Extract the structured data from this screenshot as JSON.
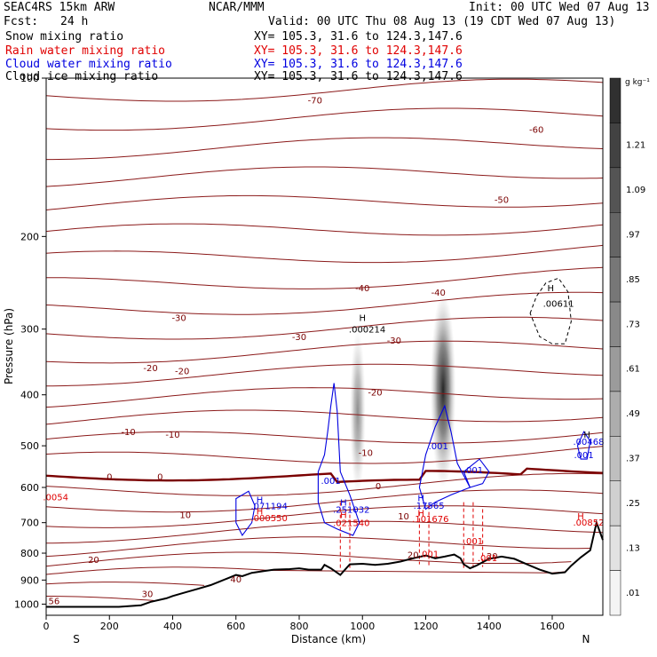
{
  "header": {
    "model": "SEAC4RS 15km ARW",
    "org": "NCAR/MMM",
    "init": "Init: 00 UTC Wed 07 Aug 13",
    "fcst_label": "Fcst:",
    "fcst_value": "24 h",
    "valid": "Valid: 00 UTC Thu 08 Aug 13 (19 CDT Wed 07 Aug 13)",
    "fields": [
      {
        "name": "Snow mixing ratio",
        "xy": "XY= 105.3, 31.6 to 124.3,147.6",
        "color": "#000000"
      },
      {
        "name": "Rain water mixing ratio",
        "xy": "XY= 105.3, 31.6 to 124.3,147.6",
        "color": "#e00000"
      },
      {
        "name": "Cloud water mixing ratio",
        "xy": "XY= 105.3, 31.6 to 124.3,147.6",
        "color": "#0000e0"
      },
      {
        "name": "Cloud ice mixing ratio",
        "xy": "XY= 105.3, 31.6 to 124.3,147.6",
        "color": "#000000"
      }
    ]
  },
  "chart_data": {
    "type": "heatmap",
    "xlabel": "Distance (km)",
    "ylabel": "Pressure (hPa)",
    "xlim": [
      0,
      1760
    ],
    "ylim": [
      1050,
      100
    ],
    "x_ticks": [
      0,
      200,
      400,
      600,
      800,
      1000,
      1200,
      1400,
      1600
    ],
    "y_ticks": [
      100,
      200,
      300,
      400,
      500,
      600,
      700,
      800,
      900,
      1000
    ],
    "y_scale": "log",
    "x_end_labels": {
      "left": "S",
      "right": "N"
    },
    "colorbar": {
      "unit": "g kg⁻¹",
      "labels": [
        "1.21",
        "1.09",
        ".97",
        ".85",
        ".73",
        ".61",
        ".49",
        ".37",
        ".25",
        ".13",
        ".01"
      ],
      "color_low": "#f4f4f4",
      "color_high": "#303030"
    },
    "temperature_contours": {
      "color": "#8b1a1a",
      "freezing_color": "#7a0000",
      "labels": [
        {
          "text": "-70",
          "x": 850,
          "p": 110
        },
        {
          "text": "-60",
          "x": 1550,
          "p": 125
        },
        {
          "text": "-50",
          "x": 1440,
          "p": 170
        },
        {
          "text": "-40",
          "x": 1000,
          "p": 250
        },
        {
          "text": "-40",
          "x": 1240,
          "p": 255
        },
        {
          "text": "-30",
          "x": 420,
          "p": 285
        },
        {
          "text": "-30",
          "x": 800,
          "p": 310
        },
        {
          "text": "-30",
          "x": 1100,
          "p": 315
        },
        {
          "text": "-20",
          "x": 330,
          "p": 355
        },
        {
          "text": "-20",
          "x": 430,
          "p": 360
        },
        {
          "text": "-20",
          "x": 1040,
          "p": 395
        },
        {
          "text": "-10",
          "x": 260,
          "p": 470
        },
        {
          "text": "-10",
          "x": 400,
          "p": 475
        },
        {
          "text": "-10",
          "x": 1010,
          "p": 515
        },
        {
          "text": "0",
          "x": 200,
          "p": 572
        },
        {
          "text": "0",
          "x": 360,
          "p": 572
        },
        {
          "text": "0",
          "x": 1050,
          "p": 595
        },
        {
          "text": "10",
          "x": 440,
          "p": 675
        },
        {
          "text": "10",
          "x": 1130,
          "p": 680
        },
        {
          "text": "20",
          "x": 150,
          "p": 822
        },
        {
          "text": "20",
          "x": 1160,
          "p": 805
        },
        {
          "text": "20",
          "x": 1410,
          "p": 810
        },
        {
          "text": "30",
          "x": 320,
          "p": 955
        },
        {
          "text": "40",
          "x": 600,
          "p": 895
        },
        {
          "text": "56",
          "x": 25,
          "p": 985
        }
      ]
    },
    "terrain": [
      [
        0,
        1012
      ],
      [
        230,
        1012
      ],
      [
        300,
        1005
      ],
      [
        330,
        990
      ],
      [
        380,
        975
      ],
      [
        400,
        965
      ],
      [
        440,
        950
      ],
      [
        480,
        935
      ],
      [
        520,
        920
      ],
      [
        550,
        905
      ],
      [
        570,
        895
      ],
      [
        600,
        880
      ],
      [
        620,
        885
      ],
      [
        650,
        872
      ],
      [
        690,
        865
      ],
      [
        720,
        860
      ],
      [
        770,
        858
      ],
      [
        800,
        855
      ],
      [
        830,
        860
      ],
      [
        870,
        860
      ],
      [
        880,
        842
      ],
      [
        900,
        855
      ],
      [
        930,
        880
      ],
      [
        960,
        840
      ],
      [
        1000,
        838
      ],
      [
        1040,
        842
      ],
      [
        1080,
        838
      ],
      [
        1120,
        830
      ],
      [
        1160,
        818
      ],
      [
        1200,
        808
      ],
      [
        1230,
        818
      ],
      [
        1260,
        812
      ],
      [
        1290,
        805
      ],
      [
        1310,
        818
      ],
      [
        1320,
        840
      ],
      [
        1340,
        855
      ],
      [
        1360,
        845
      ],
      [
        1400,
        820
      ],
      [
        1440,
        812
      ],
      [
        1480,
        820
      ],
      [
        1520,
        840
      ],
      [
        1560,
        860
      ],
      [
        1600,
        875
      ],
      [
        1640,
        870
      ],
      [
        1660,
        845
      ],
      [
        1690,
        815
      ],
      [
        1720,
        790
      ],
      [
        1740,
        700
      ],
      [
        1760,
        755
      ]
    ],
    "annotations": [
      {
        "text": "H",
        "x": 1000,
        "p": 285,
        "color": "#000000"
      },
      {
        "text": ".000214",
        "x": 1015,
        "p": 300,
        "color": "#000000"
      },
      {
        "text": "H",
        "x": 1595,
        "p": 250,
        "color": "#000000"
      },
      {
        "text": ".00611",
        "x": 1620,
        "p": 268,
        "color": "#000000"
      },
      {
        "text": "H",
        "x": 1710,
        "p": 475,
        "color": "#000000"
      },
      {
        "text": ".00468",
        "x": 1715,
        "p": 490,
        "color": "#0000e0"
      },
      {
        "text": ".001",
        "x": 1700,
        "p": 520,
        "color": "#0000e0"
      },
      {
        "text": ".001",
        "x": 900,
        "p": 582,
        "color": "#0000e0"
      },
      {
        "text": ".001",
        "x": 1240,
        "p": 500,
        "color": "#0000e0"
      },
      {
        "text": ".001",
        "x": 1350,
        "p": 555,
        "color": "#0000e0"
      },
      {
        "text": ".0054",
        "x": 30,
        "p": 625,
        "color": "#e00000"
      },
      {
        "text": "H",
        "x": 675,
        "p": 632,
        "color": "#0000e0"
      },
      {
        "text": ".071194",
        "x": 705,
        "p": 650,
        "color": "#0000e0"
      },
      {
        "text": "H",
        "x": 675,
        "p": 665,
        "color": "#e00000"
      },
      {
        "text": ".000550",
        "x": 705,
        "p": 685,
        "color": "#e00000"
      },
      {
        "text": "H",
        "x": 940,
        "p": 640,
        "color": "#0000e0"
      },
      {
        "text": ".251032",
        "x": 965,
        "p": 660,
        "color": "#0000e0"
      },
      {
        "text": "H",
        "x": 940,
        "p": 675,
        "color": "#e00000"
      },
      {
        "text": ".021540",
        "x": 965,
        "p": 700,
        "color": "#e00000"
      },
      {
        "text": "H",
        "x": 1185,
        "p": 628,
        "color": "#0000e0"
      },
      {
        "text": ".17565",
        "x": 1210,
        "p": 648,
        "color": "#0000e0"
      },
      {
        "text": "H",
        "x": 1185,
        "p": 670,
        "color": "#e00000"
      },
      {
        "text": ".101676",
        "x": 1215,
        "p": 688,
        "color": "#e00000"
      },
      {
        "text": "H",
        "x": 1690,
        "p": 680,
        "color": "#e00000"
      },
      {
        "text": ".00852",
        "x": 1715,
        "p": 698,
        "color": "#e00000"
      },
      {
        "text": ".001",
        "x": 1350,
        "p": 758,
        "color": "#e00000"
      },
      {
        "text": ".001",
        "x": 1210,
        "p": 802,
        "color": "#e00000"
      },
      {
        "text": ".001",
        "x": 1395,
        "p": 815,
        "color": "#e00000"
      }
    ],
    "snow_plumes": [
      {
        "x": 985,
        "p_top": 300,
        "p_bottom": 620,
        "width_km": 50,
        "intensity": 0.5
      },
      {
        "x": 1255,
        "p_top": 255,
        "p_bottom": 600,
        "width_km": 80,
        "intensity": 0.95
      }
    ]
  }
}
